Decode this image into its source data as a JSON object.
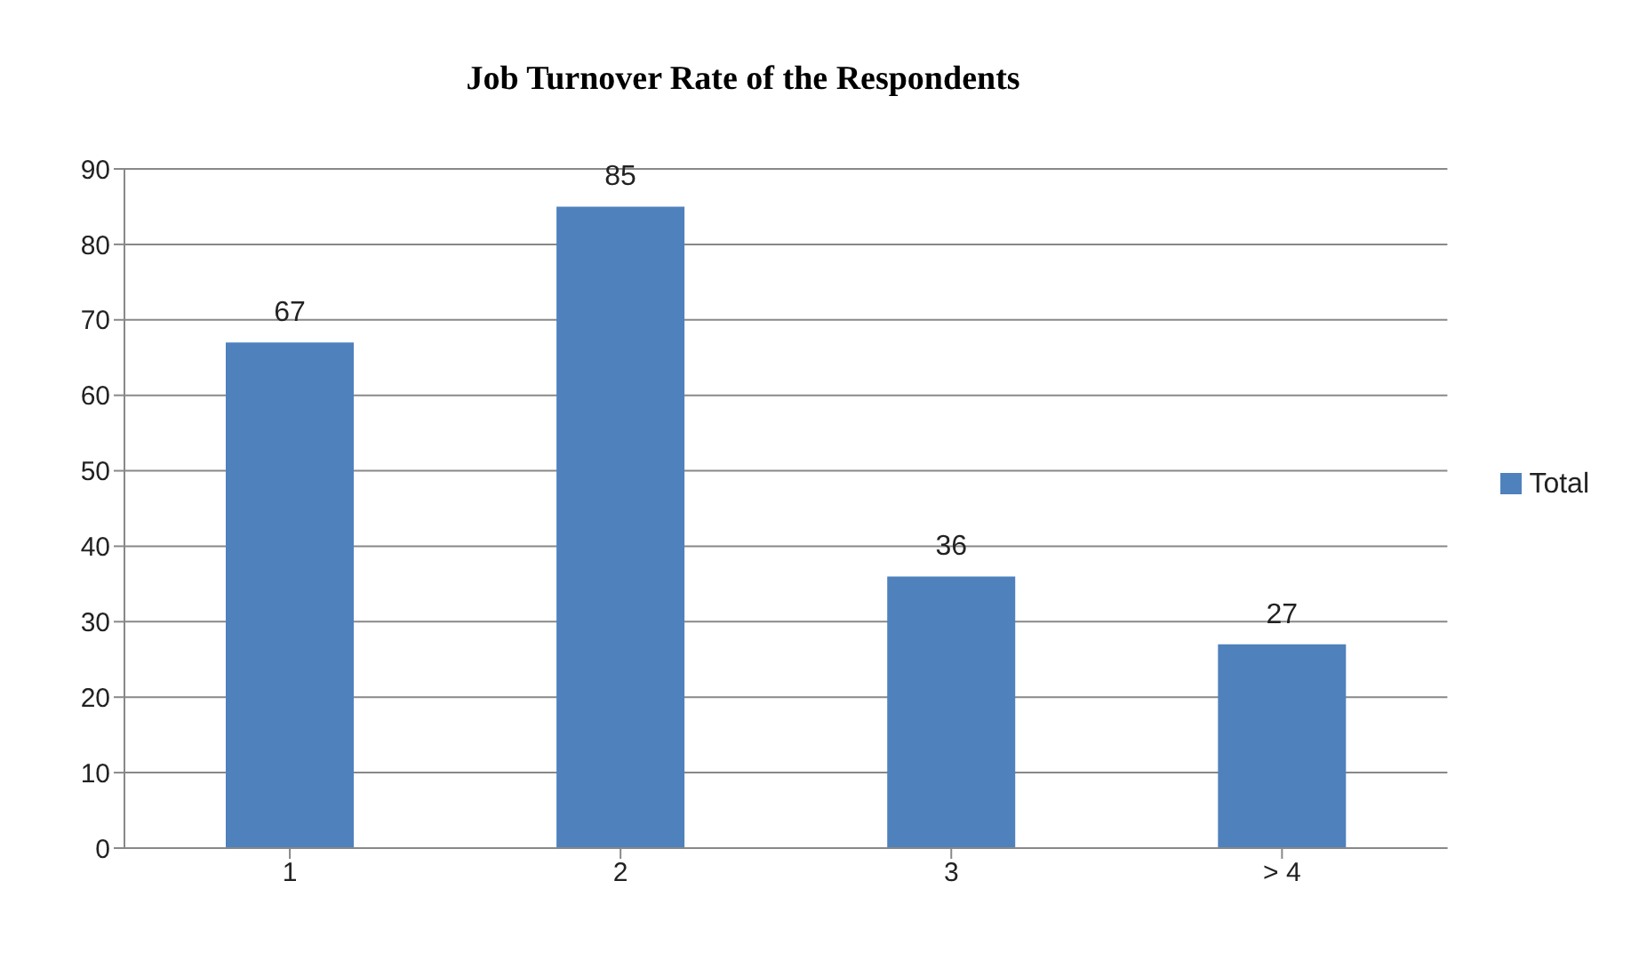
{
  "chart_data": {
    "type": "bar",
    "title": "Job Turnover Rate of the Respondents",
    "categories": [
      "1",
      "2",
      "3",
      "> 4"
    ],
    "series": [
      {
        "name": "Total",
        "color": "#4f81bd",
        "values": [
          67,
          85,
          36,
          27
        ]
      }
    ],
    "ylim": [
      0,
      90
    ],
    "yticks": [
      0,
      10,
      20,
      30,
      40,
      50,
      60,
      70,
      80,
      90
    ],
    "grid": "y",
    "legend": "right",
    "data_labels": true
  }
}
